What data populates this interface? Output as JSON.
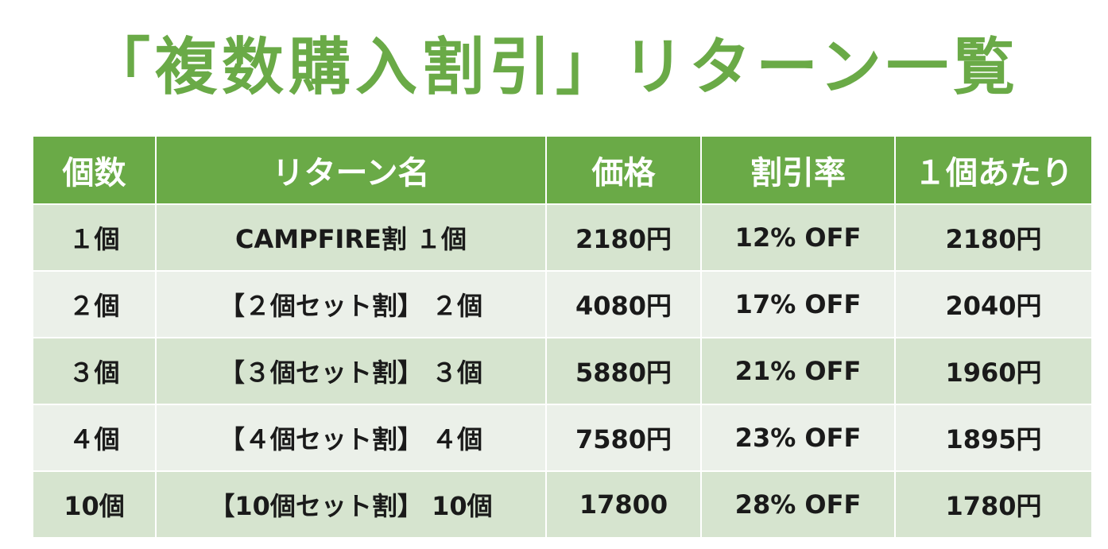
{
  "title": "「複数購入割引」リターン一覧",
  "table": {
    "headers": [
      "個数",
      "リターン名",
      "価格",
      "割引率",
      "１個あたり"
    ],
    "rows": [
      [
        "１個",
        "CAMPFIRE割 １個",
        "2180円",
        "12% OFF",
        "2180円"
      ],
      [
        "２個",
        "【２個セット割】 ２個",
        "4080円",
        "17% OFF",
        "2040円"
      ],
      [
        "３個",
        "【３個セット割】 ３個",
        "5880円",
        "21% OFF",
        "1960円"
      ],
      [
        "４個",
        "【４個セット割】 ４個",
        "7580円",
        "23% OFF",
        "1895円"
      ],
      [
        "10個",
        "【10個セット割】 10個",
        "17800",
        "28% OFF",
        "1780円"
      ]
    ]
  },
  "colors": {
    "accent": "#6aaa47",
    "row_odd": "#d6e4cf",
    "row_even": "#ebf0e9"
  }
}
